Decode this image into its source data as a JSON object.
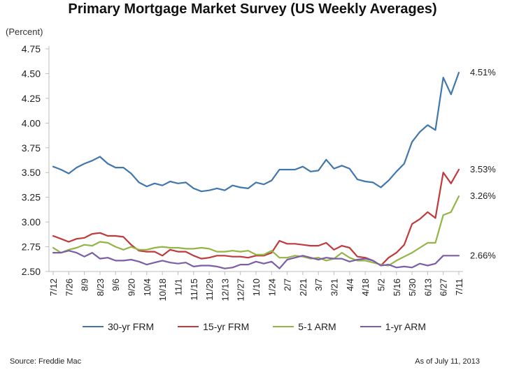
{
  "chart_data": {
    "type": "line",
    "title": "Primary Mortgage Market Survey (US Weekly Averages)",
    "unit_label": "(Percent)",
    "xlabel": "",
    "ylabel": "",
    "ylim": [
      2.5,
      4.75
    ],
    "yticks": [
      "2.50",
      "2.75",
      "3.00",
      "3.25",
      "3.50",
      "3.75",
      "4.00",
      "4.25",
      "4.50",
      "4.75"
    ],
    "x_tick_labels": [
      "7/12",
      "7/26",
      "8/9",
      "8/23",
      "9/6",
      "9/20",
      "10/4",
      "10/18",
      "11/1",
      "11/15",
      "11/29",
      "12/13",
      "12/27",
      "1/10",
      "1/24",
      "2/7",
      "2/21",
      "3/7",
      "3/21",
      "4/4",
      "4/18",
      "5/2",
      "5/16",
      "5/30",
      "6/13",
      "6/27",
      "7/11"
    ],
    "x": [
      "7/12",
      "7/19",
      "7/26",
      "8/2",
      "8/9",
      "8/16",
      "8/23",
      "8/30",
      "9/6",
      "9/13",
      "9/20",
      "9/27",
      "10/4",
      "10/11",
      "10/18",
      "10/25",
      "11/1",
      "11/8",
      "11/15",
      "11/22",
      "11/29",
      "12/6",
      "12/13",
      "12/20",
      "12/27",
      "1/3",
      "1/10",
      "1/17",
      "1/24",
      "1/31",
      "2/7",
      "2/14",
      "2/21",
      "2/28",
      "3/7",
      "3/14",
      "3/21",
      "3/28",
      "4/4",
      "4/11",
      "4/18",
      "4/25",
      "5/2",
      "5/9",
      "5/16",
      "5/23",
      "5/30",
      "6/6",
      "6/13",
      "6/20",
      "6/27",
      "7/4",
      "7/11"
    ],
    "grid": false,
    "legend_position": "bottom",
    "series": [
      {
        "name": "30-yr FRM",
        "color": "#4177ac",
        "end_label": "4.51%",
        "values": [
          3.56,
          3.53,
          3.49,
          3.55,
          3.59,
          3.62,
          3.66,
          3.59,
          3.55,
          3.55,
          3.49,
          3.4,
          3.36,
          3.39,
          3.37,
          3.41,
          3.39,
          3.4,
          3.34,
          3.31,
          3.32,
          3.34,
          3.32,
          3.37,
          3.35,
          3.34,
          3.4,
          3.38,
          3.42,
          3.53,
          3.53,
          3.53,
          3.56,
          3.51,
          3.52,
          3.63,
          3.54,
          3.57,
          3.54,
          3.43,
          3.41,
          3.4,
          3.35,
          3.42,
          3.51,
          3.59,
          3.81,
          3.91,
          3.98,
          3.93,
          4.46,
          4.29,
          4.51
        ]
      },
      {
        "name": "15-yr FRM",
        "color": "#c0393b",
        "end_label": "3.53%",
        "values": [
          2.86,
          2.83,
          2.8,
          2.83,
          2.84,
          2.88,
          2.89,
          2.86,
          2.86,
          2.85,
          2.77,
          2.71,
          2.7,
          2.7,
          2.66,
          2.72,
          2.7,
          2.7,
          2.66,
          2.63,
          2.64,
          2.66,
          2.66,
          2.65,
          2.65,
          2.64,
          2.66,
          2.66,
          2.69,
          2.81,
          2.78,
          2.78,
          2.77,
          2.76,
          2.76,
          2.79,
          2.72,
          2.76,
          2.74,
          2.65,
          2.64,
          2.61,
          2.56,
          2.64,
          2.69,
          2.77,
          2.98,
          3.03,
          3.1,
          3.04,
          3.5,
          3.39,
          3.53
        ]
      },
      {
        "name": "5-1 ARM",
        "color": "#93b545",
        "end_label": "3.26%",
        "values": [
          2.74,
          2.69,
          2.72,
          2.74,
          2.77,
          2.76,
          2.8,
          2.79,
          2.75,
          2.72,
          2.75,
          2.72,
          2.72,
          2.74,
          2.75,
          2.74,
          2.74,
          2.73,
          2.73,
          2.74,
          2.73,
          2.7,
          2.7,
          2.71,
          2.7,
          2.71,
          2.67,
          2.67,
          2.71,
          2.64,
          2.64,
          2.66,
          2.65,
          2.63,
          2.64,
          2.61,
          2.63,
          2.69,
          2.64,
          2.61,
          2.61,
          2.59,
          2.57,
          2.56,
          2.61,
          2.65,
          2.69,
          2.74,
          2.79,
          2.79,
          3.07,
          3.1,
          3.26
        ]
      },
      {
        "name": "1-yr ARM",
        "color": "#7b5ea6",
        "end_label": "2.66%",
        "values": [
          2.69,
          2.69,
          2.71,
          2.69,
          2.65,
          2.69,
          2.63,
          2.64,
          2.61,
          2.61,
          2.62,
          2.6,
          2.57,
          2.59,
          2.61,
          2.59,
          2.58,
          2.59,
          2.55,
          2.56,
          2.56,
          2.55,
          2.53,
          2.54,
          2.57,
          2.57,
          2.6,
          2.58,
          2.6,
          2.53,
          2.62,
          2.64,
          2.66,
          2.64,
          2.62,
          2.64,
          2.63,
          2.63,
          2.6,
          2.62,
          2.63,
          2.61,
          2.56,
          2.57,
          2.54,
          2.55,
          2.54,
          2.58,
          2.56,
          2.58,
          2.66,
          2.66,
          2.66
        ]
      }
    ]
  },
  "footer": {
    "source": "Source: Freddie Mac",
    "as_of": "As of July 11, 2013"
  }
}
